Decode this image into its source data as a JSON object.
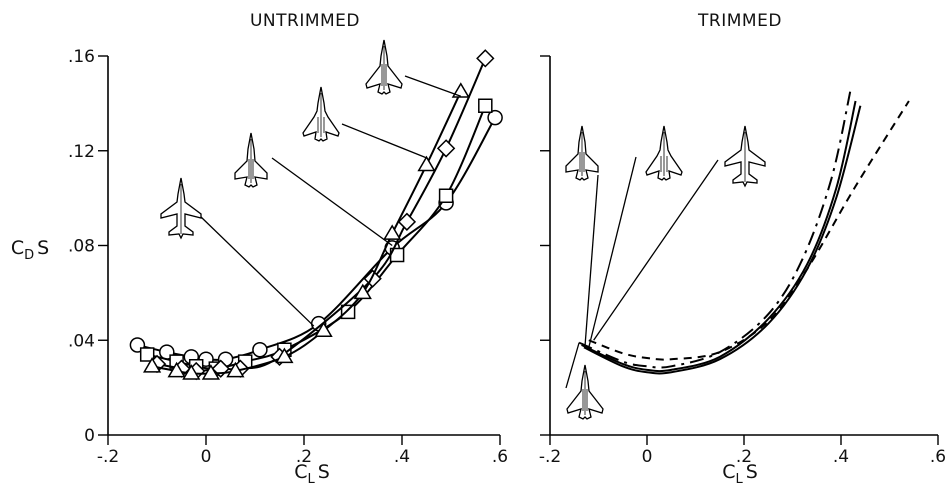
{
  "chart_data": [
    {
      "type": "line",
      "title": "UNTRIMMED",
      "xlabel": "C_L S",
      "ylabel": "C_D S",
      "xlim": [
        -0.2,
        0.6
      ],
      "ylim": [
        0,
        0.16
      ],
      "x_ticks": [
        "-.2",
        "0",
        ".2",
        ".4",
        ".6"
      ],
      "y_ticks": [
        "0",
        ".04",
        ".08",
        ".12",
        ".16"
      ],
      "grid": false,
      "legend": "aircraft planform silhouettes with leader lines to curves",
      "series": [
        {
          "marker": "circle",
          "planform": "swept-wing aircraft (lowest silhouette)",
          "x": [
            -0.14,
            -0.08,
            -0.03,
            0.0,
            0.04,
            0.11,
            0.23,
            0.38,
            0.49,
            0.59
          ],
          "y": [
            0.038,
            0.035,
            0.033,
            0.032,
            0.032,
            0.036,
            0.047,
            0.079,
            0.098,
            0.134
          ]
        },
        {
          "marker": "square",
          "planform": "delta-wing aircraft",
          "x": [
            -0.12,
            -0.06,
            -0.02,
            0.02,
            0.08,
            0.16,
            0.29,
            0.39,
            0.49,
            0.57
          ],
          "y": [
            0.034,
            0.031,
            0.029,
            0.028,
            0.031,
            0.036,
            0.052,
            0.076,
            0.101,
            0.139
          ]
        },
        {
          "marker": "diamond",
          "planform": "cropped-delta aircraft",
          "x": [
            -0.1,
            -0.05,
            -0.02,
            0.03,
            0.07,
            0.15,
            0.34,
            0.41,
            0.49,
            0.57
          ],
          "y": [
            0.03,
            0.028,
            0.027,
            0.028,
            0.028,
            0.033,
            0.066,
            0.09,
            0.121,
            0.159
          ]
        },
        {
          "marker": "triangle",
          "planform": "double-delta aircraft",
          "x": [
            -0.11,
            -0.06,
            -0.03,
            0.01,
            0.06,
            0.16,
            0.24,
            0.32,
            0.38,
            0.45,
            0.52
          ],
          "y": [
            0.029,
            0.027,
            0.026,
            0.026,
            0.027,
            0.033,
            0.044,
            0.06,
            0.085,
            0.114,
            0.145
          ]
        }
      ]
    },
    {
      "type": "line",
      "title": "TRIMMED",
      "xlabel": "C_L S",
      "ylabel": "C_D S",
      "xlim": [
        -0.2,
        0.6
      ],
      "ylim": [
        0,
        0.16
      ],
      "x_ticks": [
        "-.2",
        "0",
        ".2",
        ".4",
        ".6"
      ],
      "y_ticks": [],
      "grid": false,
      "legend": "aircraft planform silhouettes with leader lines to curves",
      "series": [
        {
          "line_style": "solid",
          "planform": "cropped-delta aircraft",
          "x": [
            -0.13,
            -0.05,
            0.0,
            0.05,
            0.15,
            0.25,
            0.33,
            0.39,
            0.44
          ],
          "y": [
            0.037,
            0.029,
            0.0265,
            0.0265,
            0.032,
            0.047,
            0.07,
            0.1,
            0.139
          ]
        },
        {
          "line_style": "solid",
          "planform": "double-delta aircraft",
          "x": [
            -0.135,
            -0.05,
            0.0,
            0.05,
            0.15,
            0.25,
            0.33,
            0.39,
            0.43
          ],
          "y": [
            0.038,
            0.03,
            0.0275,
            0.0275,
            0.033,
            0.049,
            0.072,
            0.104,
            0.141
          ]
        },
        {
          "line_style": "long-dash",
          "planform": "delta-wing aircraft",
          "x": [
            -0.14,
            -0.05,
            0.0,
            0.05,
            0.15,
            0.25,
            0.32,
            0.38,
            0.42
          ],
          "y": [
            0.039,
            0.031,
            0.029,
            0.029,
            0.035,
            0.051,
            0.074,
            0.108,
            0.146
          ]
        },
        {
          "line_style": "short-dash",
          "planform": "swept-wing aircraft",
          "x": [
            -0.12,
            -0.05,
            0.0,
            0.05,
            0.15,
            0.25,
            0.33,
            0.43,
            0.54
          ],
          "y": [
            0.04,
            0.0345,
            0.0325,
            0.032,
            0.035,
            0.048,
            0.07,
            0.105,
            0.141
          ]
        }
      ]
    }
  ]
}
